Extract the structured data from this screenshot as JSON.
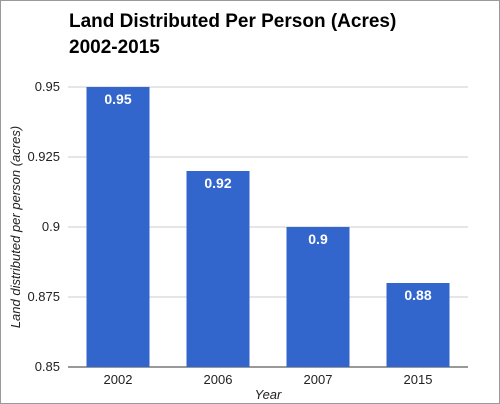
{
  "chart_data": {
    "type": "bar",
    "title_line1": "Land Distributed Per Person (Acres)",
    "title_line2": "2002-2015",
    "categories": [
      "2002",
      "2006",
      "2007",
      "2015"
    ],
    "values": [
      0.95,
      0.92,
      0.9,
      0.88
    ],
    "data_labels": [
      "0.95",
      "0.92",
      "0.9",
      "0.88"
    ],
    "xlabel": "Year",
    "ylabel": "Land distributed per person (acres)",
    "ylim": [
      0.85,
      0.95
    ],
    "yticks": [
      0.85,
      0.875,
      0.9,
      0.925,
      0.95
    ],
    "ytick_labels": [
      "0.85",
      "0.875",
      "0.9",
      "0.925",
      "0.95"
    ],
    "grid": true,
    "legend": "none",
    "bar_color": "#3366cc",
    "grid_color": "#cccccc"
  }
}
